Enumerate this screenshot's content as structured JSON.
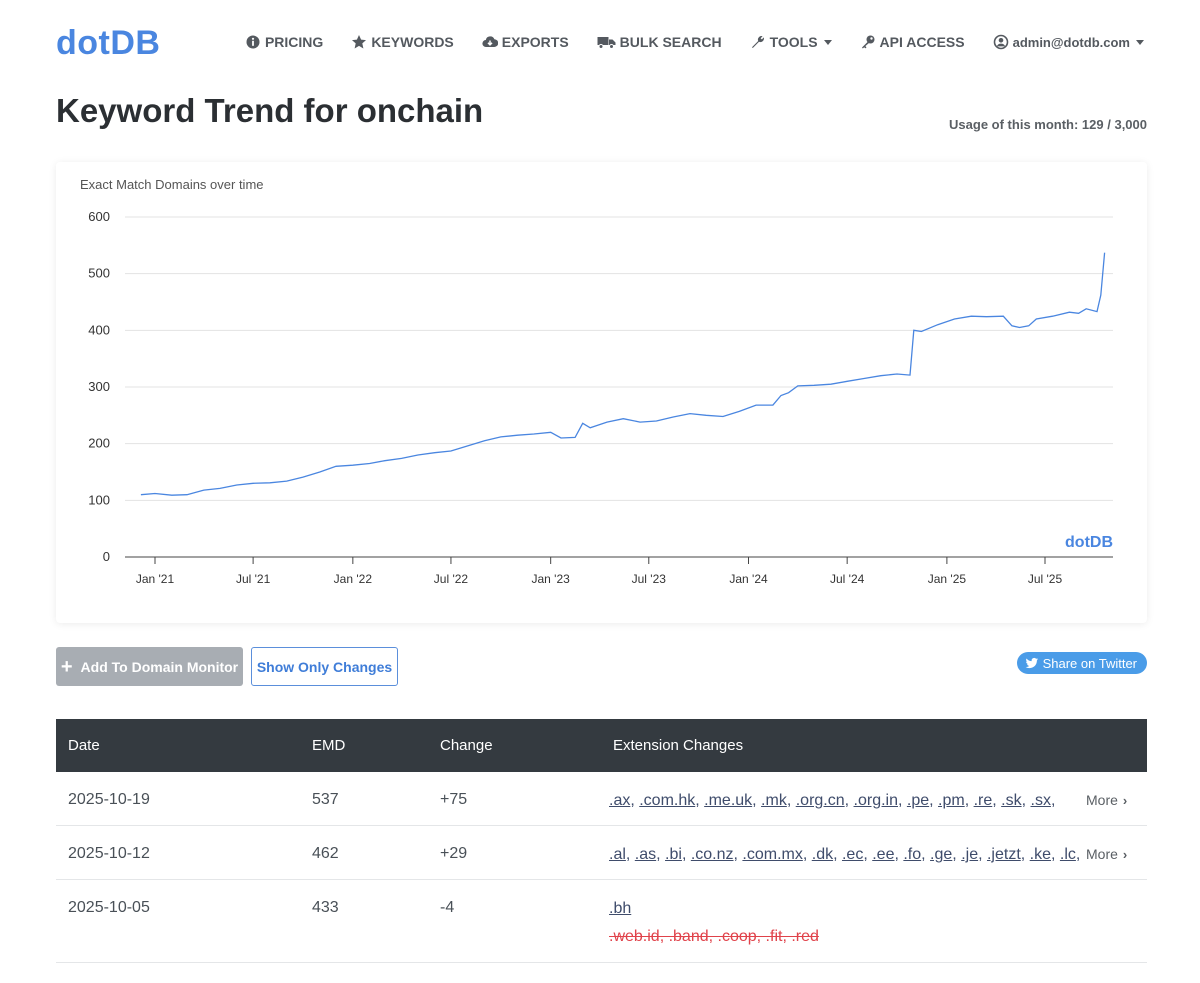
{
  "nav": {
    "logo": "dotDB",
    "items": [
      {
        "label": "PRICING",
        "icon": "info-circle-icon"
      },
      {
        "label": "KEYWORDS",
        "icon": "star-icon"
      },
      {
        "label": "EXPORTS",
        "icon": "cloud-download-icon"
      },
      {
        "label": "BULK SEARCH",
        "icon": "truck-icon"
      },
      {
        "label": "TOOLS",
        "icon": "wrench-icon"
      },
      {
        "label": "API ACCESS",
        "icon": "key-icon"
      },
      {
        "label": "admin@dotdb.com",
        "icon": "user-circle-icon"
      }
    ]
  },
  "page": {
    "title": "Keyword Trend for onchain",
    "usage": "Usage of this month: 129 / 3,000"
  },
  "chart_data": {
    "type": "line",
    "title": "Exact Match Domains over time",
    "brand": "dotDB",
    "ylim": [
      0,
      600
    ],
    "yticks": [
      "0",
      "100",
      "200",
      "300",
      "400",
      "500",
      "600"
    ],
    "xticks": [
      "Jan '21",
      "Jul '21",
      "Jan '22",
      "Jul '22",
      "Jan '23",
      "Jul '23",
      "Jan '24",
      "Jul '24",
      "Jan '25",
      "Jul '25"
    ],
    "xtick_dates": [
      "2021-01-01",
      "2021-07-01",
      "2022-01-01",
      "2022-07-01",
      "2023-01-01",
      "2023-07-01",
      "2024-01-01",
      "2024-07-01",
      "2025-01-01",
      "2025-07-01"
    ],
    "grid": true,
    "series": [
      {
        "color": "#4a86e0",
        "points": [
          [
            "2020-12-06",
            110
          ],
          [
            "2021-01-01",
            112
          ],
          [
            "2021-02-01",
            109
          ],
          [
            "2021-03-01",
            110
          ],
          [
            "2021-04-01",
            118
          ],
          [
            "2021-05-01",
            121
          ],
          [
            "2021-06-01",
            127
          ],
          [
            "2021-07-01",
            130
          ],
          [
            "2021-08-01",
            131
          ],
          [
            "2021-09-01",
            134
          ],
          [
            "2021-10-01",
            141
          ],
          [
            "2021-11-01",
            150
          ],
          [
            "2021-12-01",
            160
          ],
          [
            "2022-01-01",
            162
          ],
          [
            "2022-02-01",
            165
          ],
          [
            "2022-03-01",
            170
          ],
          [
            "2022-04-01",
            174
          ],
          [
            "2022-05-01",
            180
          ],
          [
            "2022-06-01",
            184
          ],
          [
            "2022-07-01",
            187
          ],
          [
            "2022-08-01",
            196
          ],
          [
            "2022-09-01",
            205
          ],
          [
            "2022-10-01",
            212
          ],
          [
            "2022-11-01",
            215
          ],
          [
            "2022-12-01",
            217
          ],
          [
            "2023-01-01",
            220
          ],
          [
            "2023-01-20",
            210
          ],
          [
            "2023-02-15",
            211
          ],
          [
            "2023-03-01",
            236
          ],
          [
            "2023-03-15",
            228
          ],
          [
            "2023-04-15",
            238
          ],
          [
            "2023-05-15",
            244
          ],
          [
            "2023-06-15",
            238
          ],
          [
            "2023-07-15",
            240
          ],
          [
            "2023-08-15",
            247
          ],
          [
            "2023-09-15",
            253
          ],
          [
            "2023-10-15",
            250
          ],
          [
            "2023-11-15",
            248
          ],
          [
            "2023-12-15",
            257
          ],
          [
            "2024-01-15",
            268
          ],
          [
            "2024-02-15",
            268
          ],
          [
            "2024-03-01",
            285
          ],
          [
            "2024-03-15",
            290
          ],
          [
            "2024-04-01",
            302
          ],
          [
            "2024-05-01",
            303
          ],
          [
            "2024-06-01",
            305
          ],
          [
            "2024-07-01",
            310
          ],
          [
            "2024-08-01",
            315
          ],
          [
            "2024-09-01",
            320
          ],
          [
            "2024-10-01",
            323
          ],
          [
            "2024-10-25",
            321
          ],
          [
            "2024-11-01",
            400
          ],
          [
            "2024-11-15",
            398
          ],
          [
            "2024-12-15",
            410
          ],
          [
            "2025-01-15",
            420
          ],
          [
            "2025-02-15",
            425
          ],
          [
            "2025-03-15",
            424
          ],
          [
            "2025-04-15",
            425
          ],
          [
            "2025-05-01",
            408
          ],
          [
            "2025-05-15",
            405
          ],
          [
            "2025-06-01",
            408
          ],
          [
            "2025-06-15",
            420
          ],
          [
            "2025-07-15",
            425
          ],
          [
            "2025-08-15",
            432
          ],
          [
            "2025-09-01",
            430
          ],
          [
            "2025-09-15",
            438
          ],
          [
            "2025-10-05",
            433
          ],
          [
            "2025-10-12",
            462
          ],
          [
            "2025-10-19",
            537
          ]
        ]
      }
    ]
  },
  "buttons": {
    "monitor": "Add To Domain Monitor",
    "show_changes": "Show Only Changes",
    "twitter": "Share on Twitter"
  },
  "table": {
    "headers": [
      "Date",
      "EMD",
      "Change",
      "Extension Changes"
    ],
    "more_label": "More",
    "rows": [
      {
        "date": "2025-10-19",
        "emd": "537",
        "change": "+75",
        "added": [
          ".ax",
          ".com.hk",
          ".me.uk",
          ".mk",
          ".org.cn",
          ".org.in",
          ".pe",
          ".pm",
          ".re",
          ".sk",
          ".sx"
        ],
        "removed": [],
        "more": true
      },
      {
        "date": "2025-10-12",
        "emd": "462",
        "change": "+29",
        "added": [
          ".al",
          ".as",
          ".bi",
          ".co.nz",
          ".com.mx",
          ".dk",
          ".ec",
          ".ee",
          ".fo",
          ".ge",
          ".je",
          ".jetzt",
          ".ke",
          ".lc"
        ],
        "removed": [],
        "more": true
      },
      {
        "date": "2025-10-05",
        "emd": "433",
        "change": "-4",
        "added": [
          ".bh"
        ],
        "removed": [
          ".web.id",
          ".band",
          ".coop",
          ".fit",
          ".red"
        ],
        "more": false
      }
    ]
  }
}
